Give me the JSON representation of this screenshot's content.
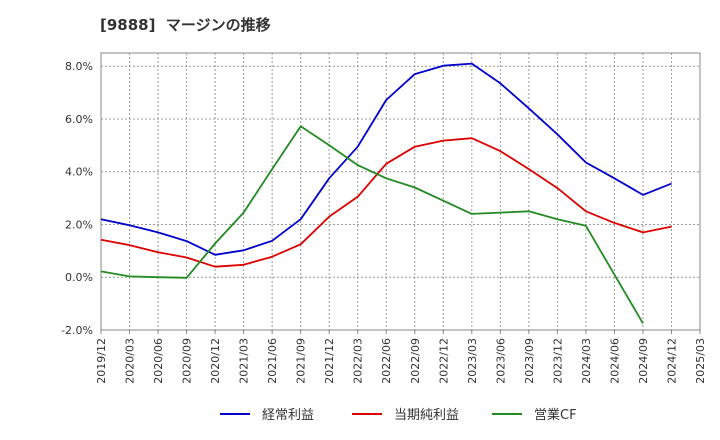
{
  "chart_data": {
    "type": "line",
    "title": "[9888]  マージンの推移",
    "categories": [
      "2019/12",
      "2020/03",
      "2020/06",
      "2020/09",
      "2020/12",
      "2021/03",
      "2021/06",
      "2021/09",
      "2021/12",
      "2022/03",
      "2022/06",
      "2022/09",
      "2022/12",
      "2023/03",
      "2023/06",
      "2023/09",
      "2023/12",
      "2024/03",
      "2024/06",
      "2024/09",
      "2024/12",
      "2025/03"
    ],
    "y_ticks": [
      "-2.0%",
      "0.0%",
      "2.0%",
      "4.0%",
      "6.0%",
      "8.0%"
    ],
    "ylim": [
      -2.0,
      8.5
    ],
    "grid": true,
    "legend_position": "bottom",
    "series": [
      {
        "name": "経常利益",
        "color": "#0000cc",
        "values": [
          2.2,
          1.97,
          1.7,
          1.37,
          0.85,
          1.02,
          1.38,
          2.2,
          3.75,
          4.95,
          6.72,
          7.7,
          8.02,
          8.1,
          7.35,
          6.4,
          5.42,
          4.35,
          3.75,
          3.12,
          3.55,
          null
        ]
      },
      {
        "name": "当期純利益",
        "color": "#dd0000",
        "values": [
          1.42,
          1.22,
          0.95,
          0.75,
          0.4,
          0.47,
          0.78,
          1.25,
          2.3,
          3.05,
          4.3,
          4.95,
          5.18,
          5.27,
          4.78,
          4.1,
          3.38,
          2.5,
          2.06,
          1.7,
          1.92,
          null
        ]
      },
      {
        "name": "営業CF",
        "color": "#228b22",
        "values": [
          0.22,
          0.03,
          0.0,
          -0.02,
          1.28,
          2.45,
          4.1,
          5.72,
          5.0,
          4.25,
          3.75,
          3.4,
          2.9,
          2.4,
          2.45,
          2.5,
          2.2,
          1.95,
          0.1,
          -1.75,
          null,
          null
        ]
      }
    ]
  }
}
